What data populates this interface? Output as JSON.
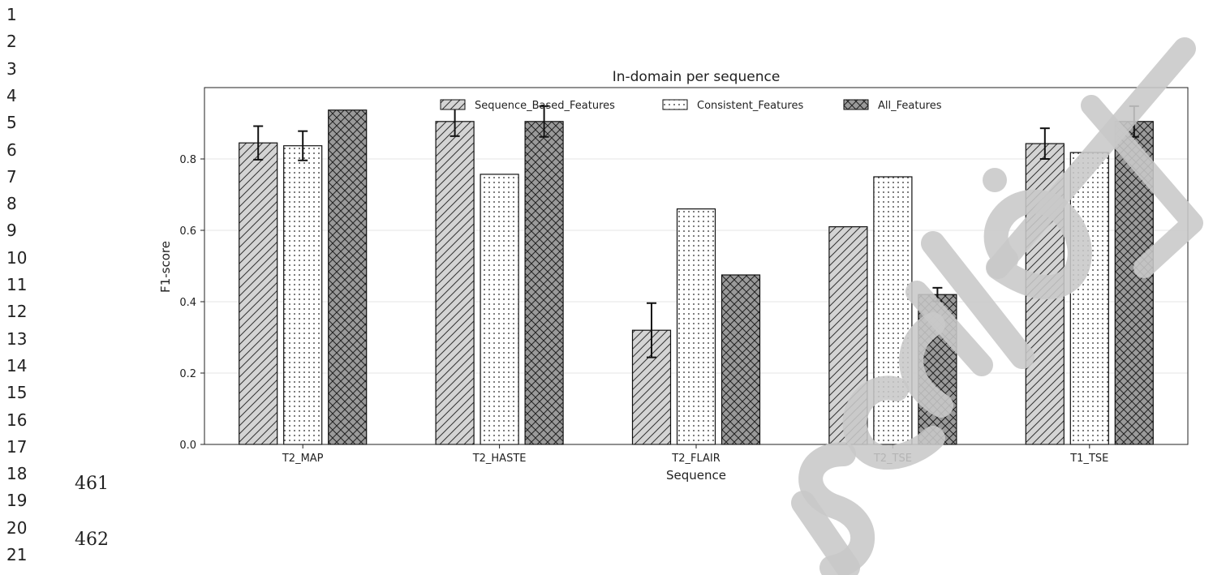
{
  "line_numbers": [
    "1",
    "2",
    "3",
    "4",
    "5",
    "6",
    "7",
    "8",
    "9",
    "10",
    "11",
    "12",
    "13",
    "14",
    "15",
    "16",
    "17",
    "18",
    "19",
    "20",
    "21"
  ],
  "page_numbers": [
    "461",
    "462"
  ],
  "watermark_text": "Accepted Manuscript",
  "chart_data": {
    "type": "bar",
    "title": "In-domain per sequence",
    "xlabel": "Sequence",
    "ylabel": "F1-score",
    "categories": [
      "T2_MAP",
      "T2_HASTE",
      "T2_FLAIR",
      "T2_TSE",
      "T1_TSE"
    ],
    "ylim": [
      0,
      1.0
    ],
    "yticks": [
      "0.0",
      "0.2",
      "0.4",
      "0.6",
      "0.8"
    ],
    "grid": "horizontal",
    "legend_position": "top-center",
    "series": [
      {
        "name": "Sequence_Based_Features",
        "pattern": "diagonal-hatch",
        "fill": "#d4d4d4",
        "values": [
          0.845,
          0.905,
          0.32,
          0.61,
          0.843
        ],
        "errors": [
          0.047,
          0.041,
          0.076,
          0.0,
          0.043
        ]
      },
      {
        "name": "Consistent_Features",
        "pattern": "dots",
        "fill": "#ffffff",
        "values": [
          0.837,
          0.757,
          0.66,
          0.75,
          0.818
        ],
        "errors": [
          0.041,
          0.0,
          0.0,
          0.0,
          0.0
        ]
      },
      {
        "name": "All_Features",
        "pattern": "crosshatch",
        "fill": "#9a9a9a",
        "values": [
          0.937,
          0.905,
          0.475,
          0.42,
          0.905
        ],
        "errors": [
          0.0,
          0.043,
          0.0,
          0.019,
          0.043
        ]
      }
    ]
  }
}
